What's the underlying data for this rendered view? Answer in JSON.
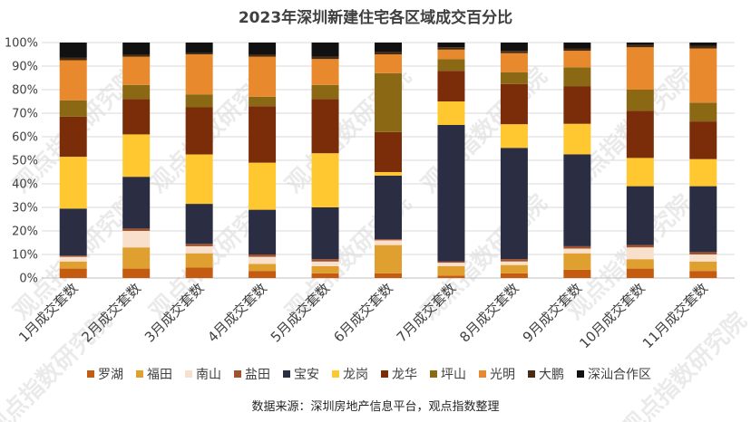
{
  "chart_data": {
    "type": "bar",
    "stacked": true,
    "title": "2023年深圳新建住宅各区域成交百分比",
    "source": "数据来源：深圳房地产信息平台，观点指数整理",
    "watermark": "观点指数研究院",
    "categories": [
      "1月成交套数",
      "2月成交套数",
      "3月成交套数",
      "4月成交套数",
      "5月成交套数",
      "6月成交套数",
      "7月成交套数",
      "8月成交套数",
      "9月成交套数",
      "10月成交套数",
      "11月成交套数"
    ],
    "ylim": [
      0,
      100
    ],
    "yticks": [
      "0%",
      "10%",
      "20%",
      "30%",
      "40%",
      "50%",
      "60%",
      "70%",
      "80%",
      "90%",
      "100%"
    ],
    "legend_position": "bottom",
    "series": [
      {
        "name": "罗湖",
        "color": "#C55A11",
        "values": [
          4,
          4,
          4.5,
          3,
          2,
          2,
          1,
          2,
          3.5,
          4,
          3
        ]
      },
      {
        "name": "福田",
        "color": "#E0A030",
        "values": [
          3,
          9,
          6,
          3,
          3,
          12,
          4,
          3.5,
          7,
          4,
          4
        ]
      },
      {
        "name": "南山",
        "color": "#F8E0CC",
        "values": [
          2,
          7,
          3,
          3,
          2,
          2,
          1.5,
          1.5,
          2,
          5,
          3
        ]
      },
      {
        "name": "盐田",
        "color": "#A0522D",
        "values": [
          0.5,
          1,
          1,
          1,
          1,
          0.5,
          0.5,
          1,
          1,
          1,
          1
        ]
      },
      {
        "name": "宝安",
        "color": "#2B2D42",
        "values": [
          20,
          22,
          17,
          19,
          22,
          27,
          58,
          47,
          39,
          25,
          28
        ]
      },
      {
        "name": "龙岗",
        "color": "#FFC830",
        "values": [
          22,
          18,
          21,
          20,
          23,
          1.5,
          10,
          10,
          13,
          12,
          11.5
        ]
      },
      {
        "name": "龙华",
        "color": "#7B2D0A",
        "values": [
          17,
          15,
          20,
          24,
          23,
          17,
          13,
          17,
          16,
          20,
          16
        ]
      },
      {
        "name": "坪山",
        "color": "#8B6914",
        "values": [
          7,
          6,
          5.5,
          4,
          6,
          25,
          5,
          5,
          8,
          9,
          8
        ]
      },
      {
        "name": "光明",
        "color": "#E8892E",
        "values": [
          17,
          12,
          17,
          17,
          11,
          8,
          4,
          8,
          7,
          18,
          23
        ]
      },
      {
        "name": "大鹏",
        "color": "#4A2A10",
        "values": [
          1,
          1,
          0.5,
          1,
          1,
          1,
          1,
          1,
          1,
          1,
          1
        ]
      },
      {
        "name": "深汕合作区",
        "color": "#111111",
        "values": [
          6.5,
          5,
          4.5,
          5,
          6,
          4,
          2,
          3.5,
          2.5,
          1,
          1.5
        ]
      }
    ]
  }
}
